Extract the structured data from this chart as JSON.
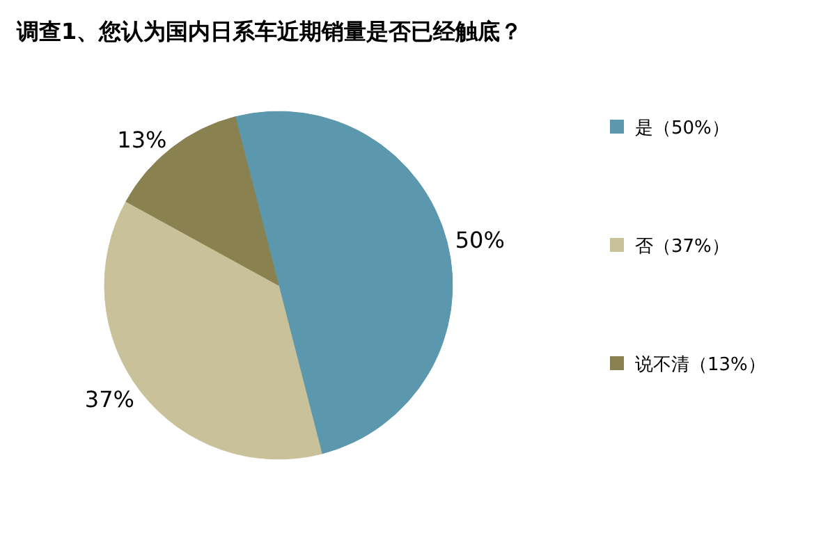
{
  "chart_data": {
    "type": "pie",
    "title": "调查1、您认为国内日系车近期销量是否已经触底？",
    "categories": [
      "是（50%）",
      "否（37%）",
      "说不清（13%）"
    ],
    "values": [
      50,
      37,
      13
    ],
    "colors": [
      "#5b98ad",
      "#c9c19a",
      "#8a8150"
    ],
    "value_labels": [
      "50%",
      "37%",
      "13%"
    ],
    "legend": "right"
  }
}
